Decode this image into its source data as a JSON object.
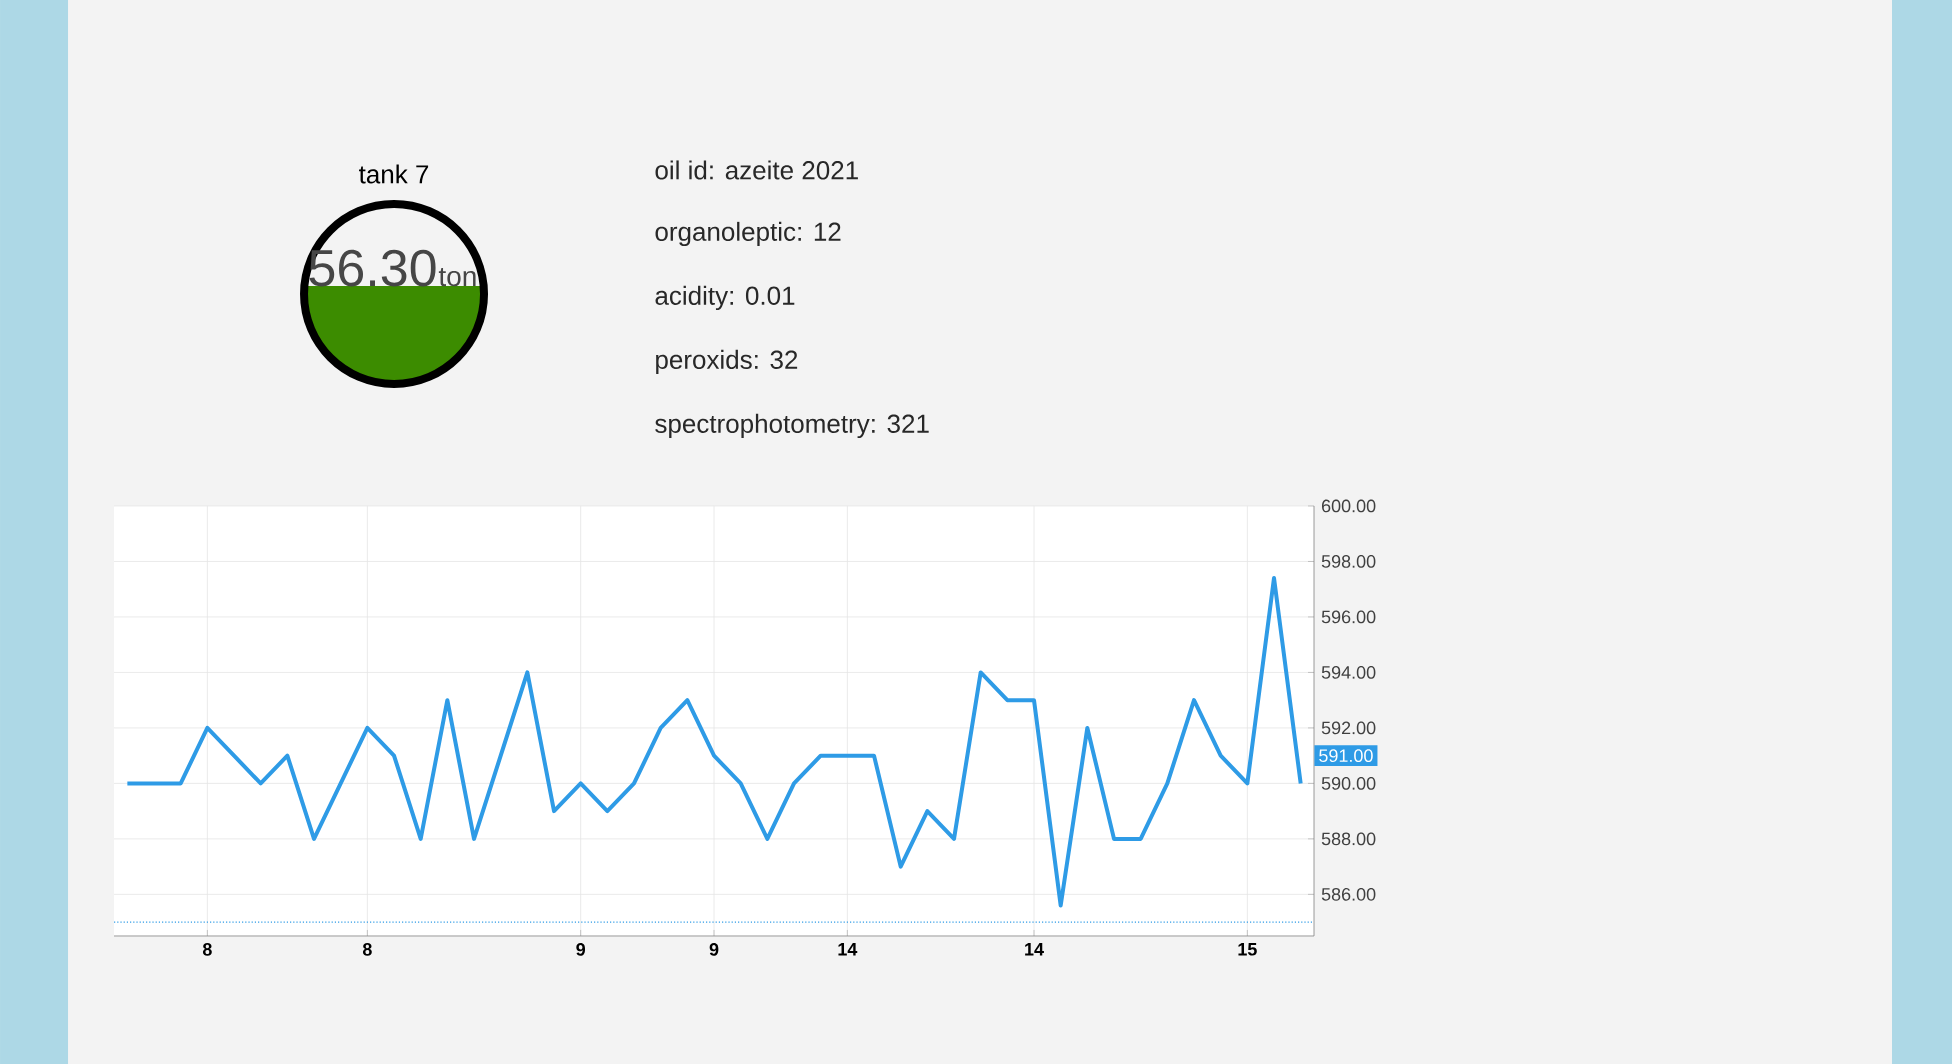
{
  "chart_data": [
    {
      "type": "other",
      "title": "tank 7",
      "annotations": [
        "56.30",
        "ton",
        "oil id: azeite 2021",
        "organoleptic: 12",
        "acidity: 0.01",
        "peroxids: 32",
        "spectrophotometry: 321"
      ]
    },
    {
      "type": "line",
      "color": "#2e9be6",
      "marker": "none",
      "line_style": "solid",
      "grid": true,
      "categories": [
        null,
        null,
        null,
        "8",
        null,
        null,
        null,
        null,
        null,
        "8",
        null,
        null,
        null,
        null,
        null,
        null,
        null,
        "9",
        null,
        null,
        null,
        null,
        "9",
        null,
        null,
        null,
        null,
        "14",
        null,
        null,
        null,
        null,
        null,
        null,
        "14",
        null,
        null,
        null,
        null,
        null,
        null,
        null,
        "15",
        null,
        null
      ],
      "values": [
        590,
        590,
        590,
        592,
        591,
        590,
        591,
        588,
        590,
        592,
        591,
        588,
        593,
        588,
        591,
        594,
        589,
        590,
        589,
        590,
        592,
        593,
        591,
        590,
        588,
        590,
        591,
        591,
        591,
        587,
        589,
        588,
        594,
        593,
        593,
        585.6,
        592,
        588,
        588,
        590,
        593,
        591,
        590,
        597.4,
        590
      ],
      "ylim": [
        584.5,
        600
      ],
      "yticks": [
        {
          "value": 586,
          "label": "586.00"
        },
        {
          "value": 588,
          "label": "588.00"
        },
        {
          "value": 590,
          "label": "590.00"
        },
        {
          "value": 592,
          "label": "592.00"
        },
        {
          "value": 594,
          "label": "594.00"
        },
        {
          "value": 596,
          "label": "596.00"
        },
        {
          "value": 598,
          "label": "598.00"
        },
        {
          "value": 600,
          "label": "600.00"
        }
      ],
      "ref_lines": [
        {
          "axis": "y",
          "value": 585,
          "color": "#2e9be6",
          "line_style": "dotted"
        }
      ],
      "annotations": [
        {
          "text": "591.00",
          "y": 591
        }
      ]
    }
  ]
}
